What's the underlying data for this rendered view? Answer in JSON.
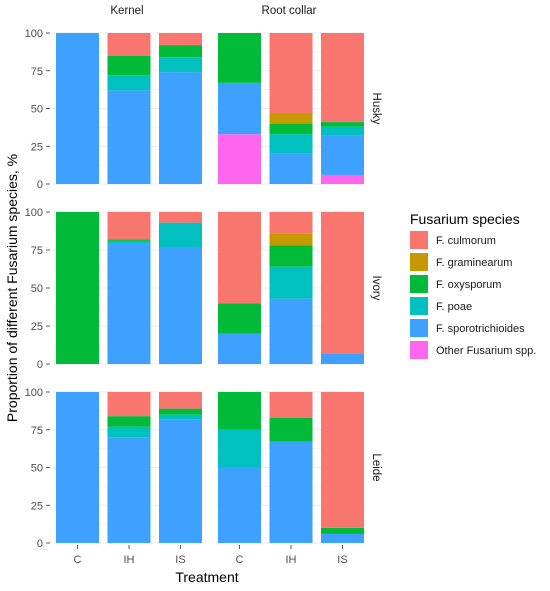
{
  "chart_data": {
    "type": "bar",
    "stacked": true,
    "xlabel": "Treatment",
    "ylabel": "Proportion of different Fusarium species, %",
    "ylim": [
      0,
      100
    ],
    "y_ticks": [
      "0",
      "25",
      "50",
      "75",
      "100"
    ],
    "categories": [
      "C",
      "IH",
      "IS"
    ],
    "facet_columns": [
      "Kernel",
      "Root collar"
    ],
    "facet_rows": [
      "Husky",
      "Ivory",
      "Leide"
    ],
    "grid": true,
    "legend_position": "right",
    "legend": {
      "title": "Fusarium species",
      "entries": [
        {
          "key": "culmorum",
          "label": "F. culmorum",
          "color": "#F8766D"
        },
        {
          "key": "graminearum",
          "label": "F. graminearum",
          "color": "#C49A00"
        },
        {
          "key": "oxysporum",
          "label": "F. oxysporum",
          "color": "#00BA38"
        },
        {
          "key": "poae",
          "label": "F. poae",
          "color": "#00C0C0"
        },
        {
          "key": "sporotrichioides",
          "label": "F. sporotrichioides",
          "color": "#3EA0FF"
        },
        {
          "key": "other",
          "label": "Other Fusarium spp.",
          "color": "#FF66EE"
        }
      ]
    },
    "panels": [
      {
        "row": "Husky",
        "col": "Kernel",
        "bars": [
          {
            "category": "C",
            "segments": {
              "other": 0,
              "sporotrichioides": 100,
              "poae": 0,
              "oxysporum": 0,
              "graminearum": 0,
              "culmorum": 0
            }
          },
          {
            "category": "IH",
            "segments": {
              "other": 0,
              "sporotrichioides": 62,
              "poae": 10,
              "oxysporum": 13,
              "graminearum": 0,
              "culmorum": 15
            }
          },
          {
            "category": "IS",
            "segments": {
              "other": 0,
              "sporotrichioides": 74,
              "poae": 10,
              "oxysporum": 8,
              "graminearum": 0,
              "culmorum": 8
            }
          }
        ]
      },
      {
        "row": "Husky",
        "col": "Root collar",
        "bars": [
          {
            "category": "C",
            "segments": {
              "other": 33,
              "sporotrichioides": 34,
              "poae": 0,
              "oxysporum": 33,
              "graminearum": 0,
              "culmorum": 0
            }
          },
          {
            "category": "IH",
            "segments": {
              "other": 0,
              "sporotrichioides": 20,
              "poae": 13,
              "oxysporum": 7,
              "graminearum": 7,
              "culmorum": 53
            }
          },
          {
            "category": "IS",
            "segments": {
              "other": 6,
              "sporotrichioides": 26,
              "poae": 6,
              "oxysporum": 3,
              "graminearum": 0,
              "culmorum": 59
            }
          }
        ]
      },
      {
        "row": "Ivory",
        "col": "Kernel",
        "bars": [
          {
            "category": "C",
            "segments": {
              "other": 0,
              "sporotrichioides": 0,
              "poae": 0,
              "oxysporum": 100,
              "graminearum": 0,
              "culmorum": 0
            }
          },
          {
            "category": "IH",
            "segments": {
              "other": 0,
              "sporotrichioides": 79,
              "poae": 2,
              "oxysporum": 1,
              "graminearum": 0,
              "culmorum": 18
            }
          },
          {
            "category": "IS",
            "segments": {
              "other": 0,
              "sporotrichioides": 77,
              "poae": 16,
              "oxysporum": 0,
              "graminearum": 0,
              "culmorum": 7
            }
          }
        ]
      },
      {
        "row": "Ivory",
        "col": "Root collar",
        "bars": [
          {
            "category": "C",
            "segments": {
              "other": 0,
              "sporotrichioides": 20,
              "poae": 0,
              "oxysporum": 20,
              "graminearum": 0,
              "culmorum": 60
            }
          },
          {
            "category": "IH",
            "segments": {
              "other": 0,
              "sporotrichioides": 43,
              "poae": 21,
              "oxysporum": 14,
              "graminearum": 8,
              "culmorum": 14
            }
          },
          {
            "category": "IS",
            "segments": {
              "other": 0,
              "sporotrichioides": 7,
              "poae": 0,
              "oxysporum": 0,
              "graminearum": 0,
              "culmorum": 93
            }
          }
        ]
      },
      {
        "row": "Leide",
        "col": "Kernel",
        "bars": [
          {
            "category": "C",
            "segments": {
              "other": 0,
              "sporotrichioides": 100,
              "poae": 0,
              "oxysporum": 0,
              "graminearum": 0,
              "culmorum": 0
            }
          },
          {
            "category": "IH",
            "segments": {
              "other": 0,
              "sporotrichioides": 70,
              "poae": 7,
              "oxysporum": 7,
              "graminearum": 0,
              "culmorum": 16
            }
          },
          {
            "category": "IS",
            "segments": {
              "other": 0,
              "sporotrichioides": 82,
              "poae": 3,
              "oxysporum": 4,
              "graminearum": 0,
              "culmorum": 11
            }
          }
        ]
      },
      {
        "row": "Leide",
        "col": "Root collar",
        "bars": [
          {
            "category": "C",
            "segments": {
              "other": 0,
              "sporotrichioides": 50,
              "poae": 25,
              "oxysporum": 25,
              "graminearum": 0,
              "culmorum": 0
            }
          },
          {
            "category": "IH",
            "segments": {
              "other": 0,
              "sporotrichioides": 67,
              "poae": 0,
              "oxysporum": 16,
              "graminearum": 0,
              "culmorum": 17
            }
          },
          {
            "category": "IS",
            "segments": {
              "other": 0,
              "sporotrichioides": 6,
              "poae": 0,
              "oxysporum": 4,
              "graminearum": 0,
              "culmorum": 90
            }
          }
        ]
      }
    ]
  }
}
